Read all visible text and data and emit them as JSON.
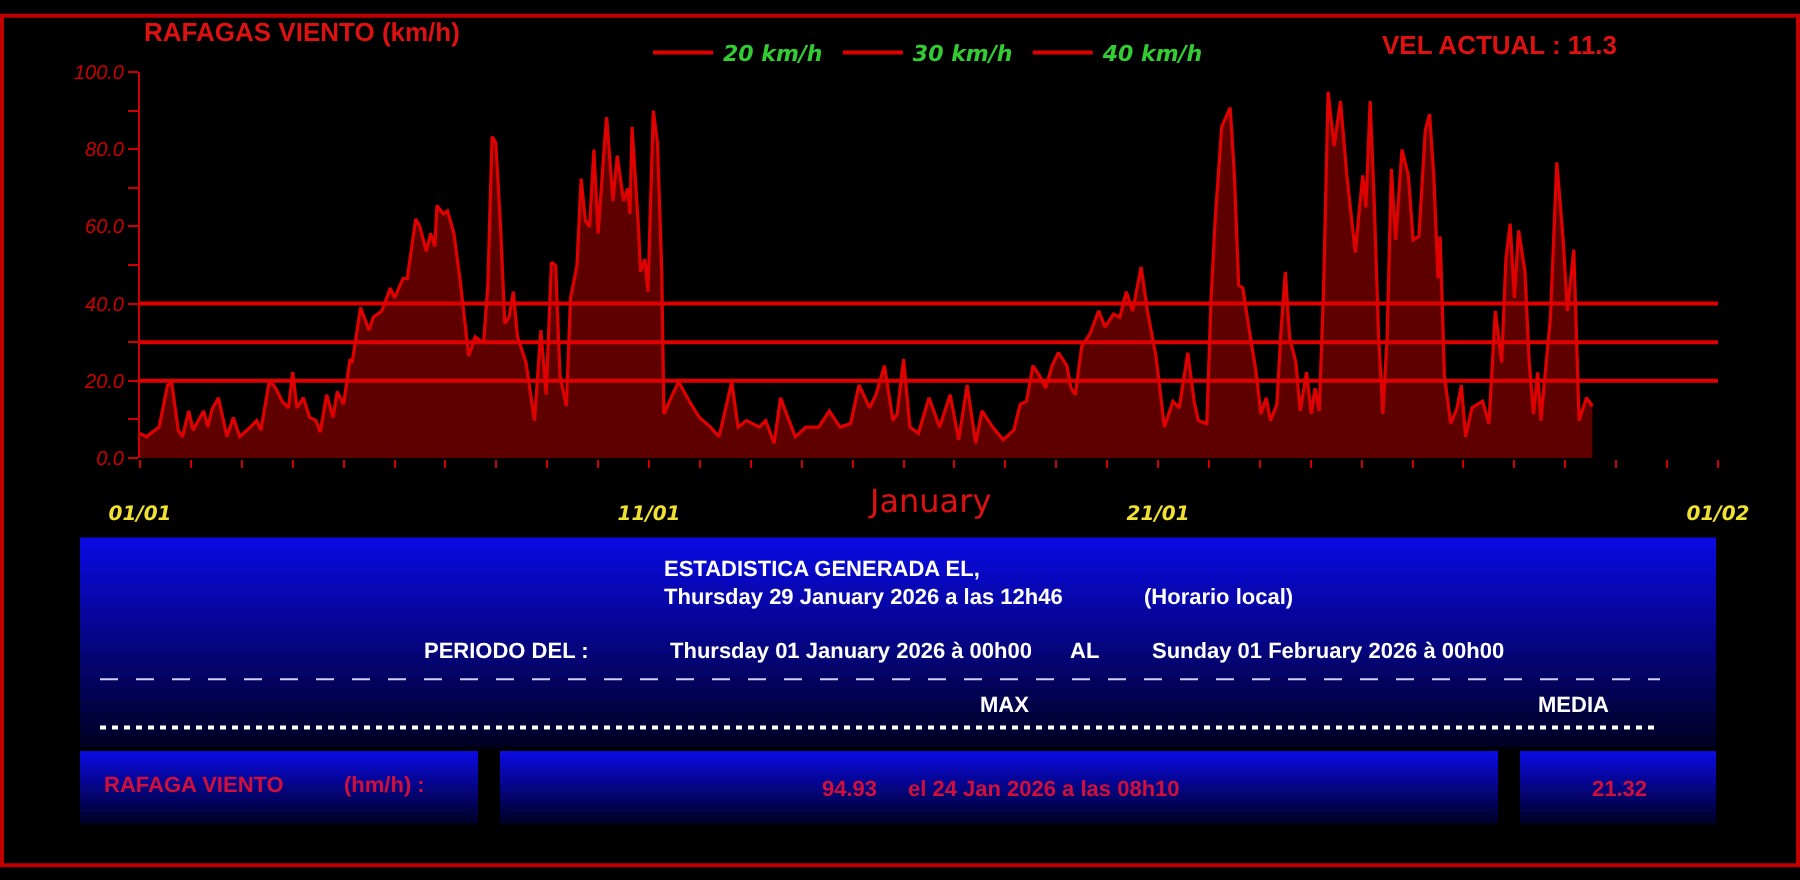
{
  "chart_data": {
    "type": "area",
    "title": "RAFAGAS VIENTO (km/h)",
    "xlabel": "January",
    "annotations": [
      "VEL ACTUAL : 11.3",
      "ESTADISTICA GENERADA EL,",
      "Thursday 29 January 2026 a las 12h46",
      "(Horario local)",
      "PERIODO DEL :",
      "Thursday 01 January 2026 à 00h00",
      "AL",
      "Sunday 01 February 2026 à 00h00",
      "MAX",
      "MEDIA",
      "RAFAGA VIENTO",
      "(hm/h) :",
      "94.93",
      "el 24 Jan 2026 a las 08h10",
      "21.32"
    ],
    "x": [
      "2026-01-01T00:00",
      "2026-01-01T03:00",
      "2026-01-01T07:00",
      "2026-01-01T09:00",
      "2026-01-01T13:00",
      "2026-01-01T15:00",
      "2026-01-01T18:00",
      "2026-01-01T20:00",
      "2026-01-01T23:00",
      "2026-01-02T01:00",
      "2026-01-02T06:00",
      "2026-01-02T08:00",
      "2026-01-02T10:00",
      "2026-01-02T13:00",
      "2026-01-02T17:00",
      "2026-01-02T20:00",
      "2026-01-02T23:00",
      "2026-01-03T04:00",
      "2026-01-03T07:00",
      "2026-01-03T09:00",
      "2026-01-03T13:00",
      "2026-01-03T16:00",
      "2026-01-03T19:00",
      "2026-01-03T22:00",
      "2026-01-04T00:00",
      "2026-01-04T02:00",
      "2026-01-04T05:00",
      "2026-01-04T08:00",
      "2026-01-04T11:00",
      "2026-01-04T13:00",
      "2026-01-04T16:00",
      "2026-01-04T19:00",
      "2026-01-04T21:00",
      "2026-01-05T00:00",
      "2026-01-05T03:00",
      "2026-01-05T04:00",
      "2026-01-05T08:00",
      "2026-01-05T12:00",
      "2026-01-05T14:00",
      "2026-01-05T18:00",
      "2026-01-05T22:00",
      "2026-01-06T00:00",
      "2026-01-06T04:00",
      "2026-01-06T06:00",
      "2026-01-06T10:00",
      "2026-01-06T12:00",
      "2026-01-06T15:00",
      "2026-01-06T17:00",
      "2026-01-06T19:00",
      "2026-01-06T20:00",
      "2026-01-06T23:00",
      "2026-01-07T01:00",
      "2026-01-07T04:00",
      "2026-01-07T07:00",
      "2026-01-07T11:00",
      "2026-01-07T14:00",
      "2026-01-07T18:00",
      "2026-01-07T20:00",
      "2026-01-07T22:00",
      "2026-01-07T23:45",
      "2026-01-08T02:00",
      "2026-01-08T04:00",
      "2026-01-08T06:00",
      "2026-01-08T08:00",
      "2026-01-08T10:00",
      "2026-01-08T14:00",
      "2026-01-08T18:00",
      "2026-01-08T21:00",
      "2026-01-08T23:30",
      "2026-01-09T02:00",
      "2026-01-09T04:00",
      "2026-01-09T06:00",
      "2026-01-09T09:00",
      "2026-01-09T11:00",
      "2026-01-09T14:00",
      "2026-01-09T16:00",
      "2026-01-09T18:00",
      "2026-01-09T20:00",
      "2026-01-09T22:00",
      "2026-01-10T00:00",
      "2026-01-10T03:00",
      "2026-01-10T04:00",
      "2026-01-10T07:00",
      "2026-01-10T09:00",
      "2026-01-10T12:00",
      "2026-01-10T14:00",
      "2026-01-10T15:00",
      "2026-01-10T16:00",
      "2026-01-10T19:00",
      "2026-01-10T20:00",
      "2026-01-10T22:00",
      "2026-01-10T23:30",
      "2026-01-11T02:00",
      "2026-01-11T04:00",
      "2026-01-11T06:00",
      "2026-01-11T07:00",
      "2026-01-11T11:00",
      "2026-01-11T14:00",
      "2026-01-11T19:00",
      "2026-01-11T23:45",
      "2026-01-12T05:00",
      "2026-01-12T09:00",
      "2026-01-12T15:00",
      "2026-01-12T18:00",
      "2026-01-12T22:00",
      "2026-01-13T04:00",
      "2026-01-13T07:00",
      "2026-01-13T11:00",
      "2026-01-13T14:00",
      "2026-01-13T18:00",
      "2026-01-13T21:00",
      "2026-01-14T02:00",
      "2026-01-14T08:00",
      "2026-01-14T13:00",
      "2026-01-14T18:00",
      "2026-01-14T23:00",
      "2026-01-15T03:00",
      "2026-01-15T08:00",
      "2026-01-15T11:00",
      "2026-01-15T15:00",
      "2026-01-15T19:00",
      "2026-01-15T21:00",
      "2026-01-16T00:00",
      "2026-01-16T03:00",
      "2026-01-16T07:00",
      "2026-01-16T12:00",
      "2026-01-16T17:00",
      "2026-01-16T22:00",
      "2026-01-17T02:00",
      "2026-01-17T06:00",
      "2026-01-17T10:00",
      "2026-01-17T13:00",
      "2026-01-17T18:00",
      "2026-01-17T23:00",
      "2026-01-18T04:00",
      "2026-01-18T07:00",
      "2026-01-18T10:00",
      "2026-01-18T13:00",
      "2026-01-18T16:00",
      "2026-01-18T19:00",
      "2026-01-18T22:00",
      "2026-01-19T01:00",
      "2026-01-19T05:00",
      "2026-01-19T07:00",
      "2026-01-19T09:00",
      "2026-01-19T12:00",
      "2026-01-19T16:00",
      "2026-01-19T20:00",
      "2026-01-19T23:00",
      "2026-01-20T03:00",
      "2026-01-20T06:00",
      "2026-01-20T09:00",
      "2026-01-20T12:00",
      "2026-01-20T16:00",
      "2026-01-20T19:00",
      "2026-01-20T23:00",
      "2026-01-21T03:00",
      "2026-01-21T07:00",
      "2026-01-21T10:00",
      "2026-01-21T14:00",
      "2026-01-21T17:00",
      "2026-01-21T19:00",
      "2026-01-21T23:00",
      "2026-01-22T01:00",
      "2026-01-22T03:00",
      "2026-01-22T06:00",
      "2026-01-22T10:00",
      "2026-01-22T12:00",
      "2026-01-22T14:00",
      "2026-01-22T16:00",
      "2026-01-22T19:00",
      "2026-01-22T22:00",
      "2026-01-23T00:30",
      "2026-01-23T03:00",
      "2026-01-23T05:00",
      "2026-01-23T08:00",
      "2026-01-23T10:00",
      "2026-01-23T12:00",
      "2026-01-23T14:00",
      "2026-01-23T17:00",
      "2026-01-23T19:00",
      "2026-01-23T22:00",
      "2026-01-24T00:15",
      "2026-01-24T02:00",
      "2026-01-24T04:00",
      "2026-01-24T06:00",
      "2026-01-24T08:10",
      "2026-01-24T11:00",
      "2026-01-24T14:00",
      "2026-01-24T17:00",
      "2026-01-24T21:00",
      "2026-01-24T23:00",
      "2026-01-25T00:30",
      "2026-01-25T02:00",
      "2026-01-25T04:00",
      "2026-01-25T06:00",
      "2026-01-25T08:00",
      "2026-01-25T10:00",
      "2026-01-25T12:00",
      "2026-01-25T14:00",
      "2026-01-25T16:00",
      "2026-01-25T19:00",
      "2026-01-25T22:00",
      "2026-01-26T00:15",
      "2026-01-26T03:00",
      "2026-01-26T06:00",
      "2026-01-26T08:00",
      "2026-01-26T10:00",
      "2026-01-26T12:00",
      "2026-01-26T13:00",
      "2026-01-26T15:00",
      "2026-01-26T18:00",
      "2026-01-26T21:00",
      "2026-01-26T23:00",
      "2026-01-27T01:00",
      "2026-01-27T04:00",
      "2026-01-27T09:00",
      "2026-01-27T12:00",
      "2026-01-27T15:00",
      "2026-01-27T18:00",
      "2026-01-27T20:00",
      "2026-01-27T22:00",
      "2026-01-28T00:00",
      "2026-01-28T02:00",
      "2026-01-28T05:00",
      "2026-01-28T07:00",
      "2026-01-28T09:00",
      "2026-01-28T11:00",
      "2026-01-28T12:30",
      "2026-01-28T15:00",
      "2026-01-28T17:00",
      "2026-01-28T20:00",
      "2026-01-28T23:00",
      "2026-01-29T01:00",
      "2026-01-29T04:00",
      "2026-01-29T05:00",
      "2026-01-29T06:30",
      "2026-01-29T10:00",
      "2026-01-29T12:46"
    ],
    "series": [
      {
        "color": "#e00000",
        "values": [
          6.4,
          5.5,
          7.2,
          8,
          18.9,
          19.4,
          7.2,
          5.5,
          12.2,
          7.2,
          12.2,
          8,
          12.7,
          15.6,
          5.5,
          10.5,
          5.5,
          8,
          9.7,
          7.2,
          20.1,
          18.1,
          14.7,
          13,
          22.2,
          13,
          15.6,
          10.5,
          9.7,
          6.7,
          16.4,
          10.5,
          17.2,
          13.9,
          25.6,
          24.7,
          39,
          33.1,
          36.5,
          38.1,
          44,
          41.5,
          46.5,
          46.5,
          61.9,
          59.9,
          53.5,
          58.2,
          54.8,
          65.4,
          63.2,
          64,
          58.2,
          45.7,
          26.4,
          31.4,
          29.8,
          44.8,
          83.3,
          81.6,
          59.9,
          34.8,
          36.5,
          43.1,
          31.4,
          24.7,
          9.7,
          33.1,
          16.4,
          50.7,
          49.8,
          21.4,
          13.4,
          41.5,
          49.8,
          72.4,
          61.5,
          59.9,
          79.9,
          58.2,
          81.6,
          88.3,
          66.6,
          78.3,
          66.6,
          69.9,
          63.2,
          85.8,
          59.9,
          48.2,
          51.5,
          43.1,
          90,
          81.6,
          48.2,
          11.4,
          16.4,
          19.7,
          14.7,
          10.5,
          8,
          5.5,
          19.7,
          8,
          9.7,
          8,
          9.7,
          3.8,
          15.6,
          9.7,
          5.5,
          8,
          8,
          12.2,
          8,
          8.9,
          18.9,
          13,
          16.4,
          23.9,
          9.7,
          11.4,
          25.6,
          8,
          6.4,
          15.6,
          8,
          16.4,
          4.7,
          18.9,
          3.8,
          12.2,
          8,
          4.7,
          7.2,
          13.9,
          14.7,
          23.9,
          21.4,
          18.1,
          23.9,
          27.3,
          23.9,
          18.1,
          16.4,
          28.9,
          32.3,
          38.1,
          33.9,
          37.3,
          36.5,
          43.1,
          38.1,
          49.5,
          38.1,
          26.4,
          8,
          14.7,
          13,
          27.3,
          14.7,
          9.7,
          8.9,
          41.5,
          62.4,
          85.8,
          90.8,
          73.2,
          44.8,
          44,
          33.1,
          23.1,
          11.4,
          15.6,
          9.7,
          13.9,
          33.1,
          48.2,
          31.4,
          24.7,
          12.2,
          22.2,
          11.4,
          18.1,
          12.2,
          43.1,
          94.9,
          80.8,
          92.5,
          73.2,
          53.2,
          64.9,
          73.2,
          64.9,
          92.5,
          64.9,
          31.4,
          11.4,
          31.4,
          74.9,
          56.5,
          79.9,
          73.2,
          56.5,
          57.4,
          84.9,
          89.1,
          73.2,
          46.5,
          57.4,
          21.4,
          8.9,
          13,
          18.9,
          5.5,
          13,
          14.7,
          8.9,
          38.1,
          24.7,
          51.5,
          60.7,
          41.5,
          59,
          48.2,
          24.7,
          11.4,
          22.2,
          9.7,
          24.7,
          36.5,
          76.6,
          56.5,
          38.1,
          54,
          36.5,
          9.7,
          15.6,
          13.4
        ]
      }
    ],
    "xlim": [
      "2026-01-01",
      "2026-02-01"
    ],
    "xticks": [
      {
        "value": "2026-01-01",
        "label": "01/01"
      },
      {
        "value": "2026-01-02",
        "label": null
      },
      {
        "value": "2026-01-03",
        "label": null
      },
      {
        "value": "2026-01-04",
        "label": null
      },
      {
        "value": "2026-01-05",
        "label": null
      },
      {
        "value": "2026-01-06",
        "label": null
      },
      {
        "value": "2026-01-07",
        "label": null
      },
      {
        "value": "2026-01-08",
        "label": null
      },
      {
        "value": "2026-01-09",
        "label": null
      },
      {
        "value": "2026-01-10",
        "label": null
      },
      {
        "value": "2026-01-11",
        "label": "11/01"
      },
      {
        "value": "2026-01-12",
        "label": null
      },
      {
        "value": "2026-01-13",
        "label": null
      },
      {
        "value": "2026-01-14",
        "label": null
      },
      {
        "value": "2026-01-15",
        "label": null
      },
      {
        "value": "2026-01-16",
        "label": null
      },
      {
        "value": "2026-01-17",
        "label": null
      },
      {
        "value": "2026-01-18",
        "label": null
      },
      {
        "value": "2026-01-19",
        "label": null
      },
      {
        "value": "2026-01-20",
        "label": null
      },
      {
        "value": "2026-01-21",
        "label": "21/01"
      },
      {
        "value": "2026-01-22",
        "label": null
      },
      {
        "value": "2026-01-23",
        "label": null
      },
      {
        "value": "2026-01-24",
        "label": null
      },
      {
        "value": "2026-01-25",
        "label": null
      },
      {
        "value": "2026-01-26",
        "label": null
      },
      {
        "value": "2026-01-27",
        "label": null
      },
      {
        "value": "2026-01-28",
        "label": null
      },
      {
        "value": "2026-01-29",
        "label": null
      },
      {
        "value": "2026-01-30",
        "label": null
      },
      {
        "value": "2026-01-31",
        "label": null
      },
      {
        "value": "2026-02-01",
        "label": "01/02"
      }
    ],
    "ylim": [
      0,
      100
    ],
    "yticks": [
      {
        "value": 0,
        "label": "0.0"
      },
      {
        "value": 10,
        "label": null
      },
      {
        "value": 20,
        "label": "20.0"
      },
      {
        "value": 30,
        "label": null
      },
      {
        "value": 40,
        "label": "40.0"
      },
      {
        "value": 50,
        "label": null
      },
      {
        "value": 60,
        "label": "60.0"
      },
      {
        "value": 70,
        "label": null
      },
      {
        "value": 80,
        "label": "80.0"
      },
      {
        "value": 90,
        "label": null
      },
      {
        "value": 100,
        "label": "100.0"
      }
    ],
    "ref_lines": [
      {
        "axis": "y",
        "value": 20,
        "label": "20 km/h",
        "color": "#e00000"
      },
      {
        "axis": "y",
        "value": 30,
        "label": "30 km/h",
        "color": "#e00000"
      },
      {
        "axis": "y",
        "value": 40,
        "label": "40 km/h",
        "color": "#e00000"
      }
    ],
    "legend": "top"
  }
}
